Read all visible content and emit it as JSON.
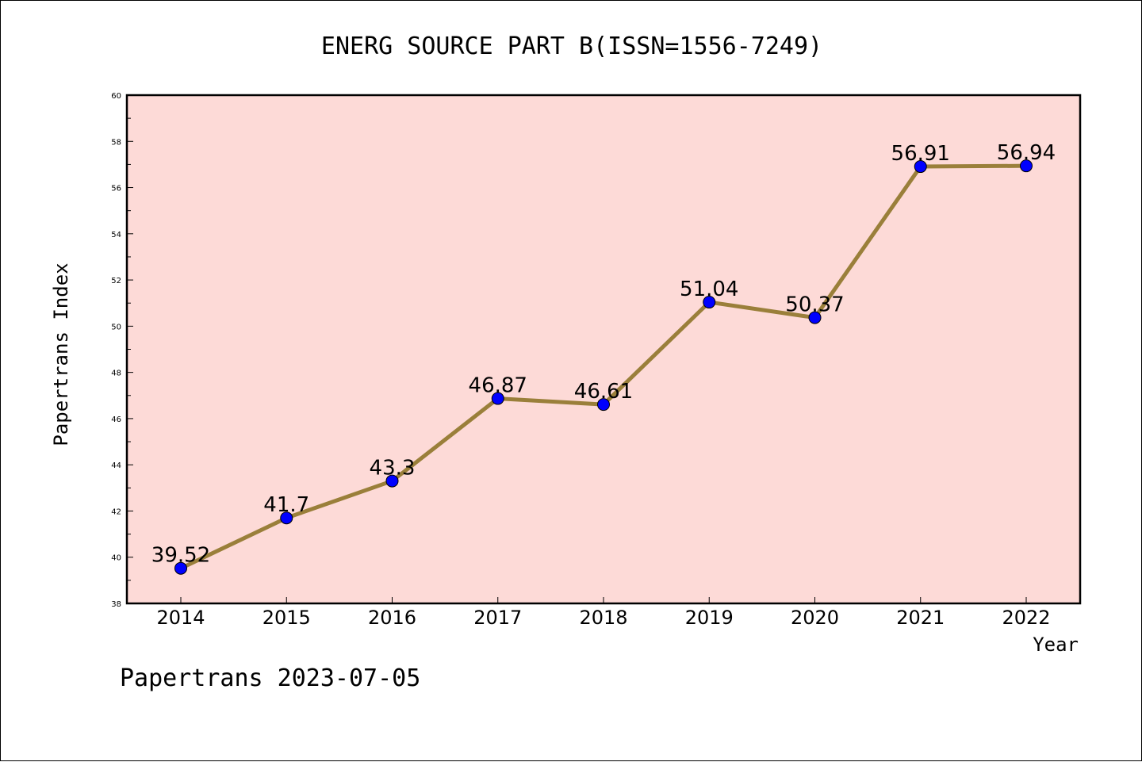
{
  "chart_data": {
    "type": "line",
    "title": "ENERG SOURCE PART B(ISSN=1556-7249)",
    "xlabel": "Year",
    "ylabel": "Papertrans Index",
    "categories": [
      "2014",
      "2015",
      "2016",
      "2017",
      "2018",
      "2019",
      "2020",
      "2021",
      "2022"
    ],
    "values": [
      39.52,
      41.7,
      43.3,
      46.87,
      46.61,
      51.04,
      50.37,
      56.91,
      56.94
    ],
    "data_labels": [
      "39.52",
      "41.7",
      "43.3",
      "46.87",
      "46.61",
      "51.04",
      "50.37",
      "56.91",
      "56.94"
    ],
    "ylim": [
      38,
      60
    ],
    "yticks": [
      "38",
      "40",
      "42",
      "44",
      "46",
      "48",
      "50",
      "52",
      "54",
      "56",
      "58",
      "60"
    ],
    "grid": false,
    "legend": "none",
    "colors": {
      "line": "#9a7f3a",
      "marker": "#0000ff",
      "plot_background": "#fddad7"
    }
  },
  "footer": "Papertrans 2023-07-05"
}
